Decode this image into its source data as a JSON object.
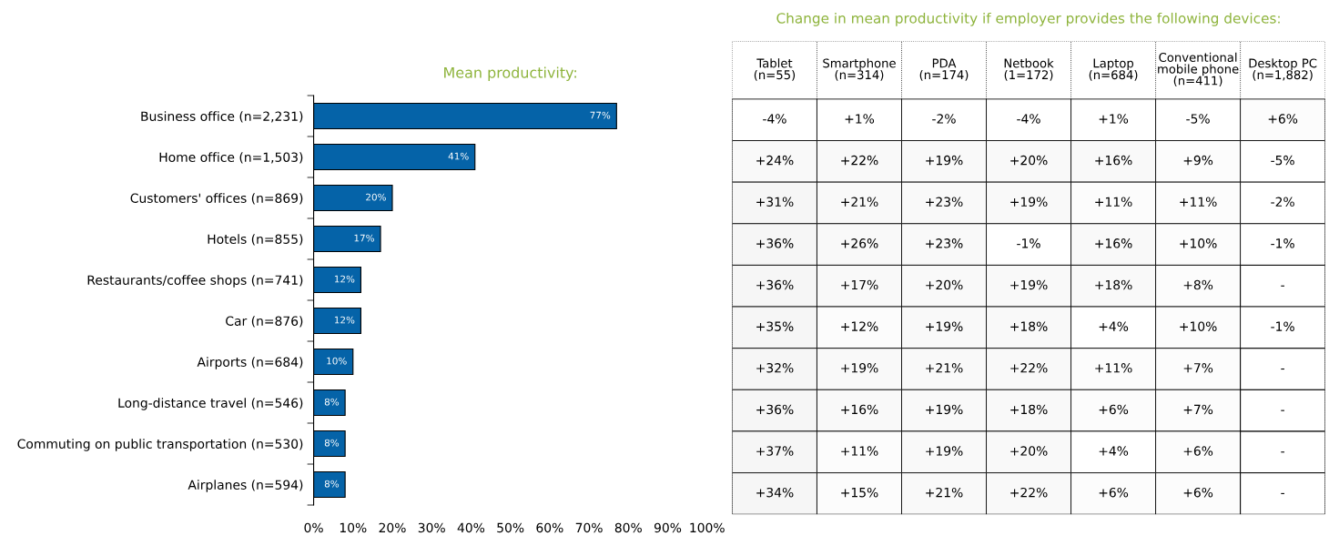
{
  "chart_data": [
    {
      "type": "bar",
      "orientation": "horizontal",
      "title": "Mean productivity:",
      "color": "#0563a8",
      "categories": [
        "Business office (n=2,231)",
        "Home office (n=1,503)",
        "Customers' offices (n=869)",
        "Hotels (n=855)",
        "Restaurants/coffee shops (n=741)",
        "Car (n=876)",
        "Airports (n=684)",
        "Long-distance travel (n=546)",
        "Commuting on public transportation (n=530)",
        "Airplanes (n=594)"
      ],
      "values": [
        77,
        41,
        20,
        17,
        12,
        12,
        10,
        8,
        8,
        8
      ],
      "value_labels": [
        "77%",
        "41%",
        "20%",
        "17%",
        "12%",
        "12%",
        "10%",
        "8%",
        "8%",
        "8%"
      ],
      "xlim": [
        0,
        100
      ],
      "xticks": [
        {
          "value": 0,
          "label": "0%"
        },
        {
          "value": 10,
          "label": "10%"
        },
        {
          "value": 20,
          "label": "20%"
        },
        {
          "value": 30,
          "label": "30%"
        },
        {
          "value": 40,
          "label": "40%"
        },
        {
          "value": 50,
          "label": "50%"
        },
        {
          "value": 60,
          "label": "60%"
        },
        {
          "value": 70,
          "label": "70%"
        },
        {
          "value": 80,
          "label": "80%"
        },
        {
          "value": 90,
          "label": "90%"
        },
        {
          "value": 100,
          "label": "100%"
        }
      ]
    },
    {
      "type": "heatmap",
      "title": "Change in mean productivity if employer provides the following devices:",
      "categories": [
        "Tablet\n(n=55)",
        "Smartphone\n(n=314)",
        "PDA\n(n=174)",
        "Netbook\n(1=172)",
        "Laptop\n(n=684)",
        "Conventional\nmobile phone\n(n=411)",
        "Desktop PC\n(n=1,882)"
      ],
      "y_categories": [
        null,
        null,
        null,
        null,
        null,
        null,
        null,
        null,
        null,
        null
      ],
      "cells": [
        [
          -4,
          1,
          -2,
          -4,
          1,
          -5,
          6
        ],
        [
          24,
          22,
          19,
          20,
          16,
          9,
          -5
        ],
        [
          31,
          21,
          23,
          19,
          11,
          11,
          -2
        ],
        [
          36,
          26,
          23,
          -1,
          16,
          10,
          -1
        ],
        [
          36,
          17,
          20,
          19,
          18,
          8,
          null
        ],
        [
          35,
          12,
          19,
          18,
          4,
          10,
          -1
        ],
        [
          32,
          19,
          21,
          22,
          11,
          7,
          null
        ],
        [
          36,
          16,
          19,
          18,
          6,
          7,
          null
        ],
        [
          37,
          11,
          19,
          20,
          4,
          6,
          null
        ],
        [
          34,
          15,
          21,
          22,
          6,
          6,
          null
        ]
      ],
      "cell_labels": [
        [
          "-4%",
          "+1%",
          "-2%",
          "-4%",
          "+1%",
          "-5%",
          "+6%"
        ],
        [
          "+24%",
          "+22%",
          "+19%",
          "+20%",
          "+16%",
          "+9%",
          "-5%"
        ],
        [
          "+31%",
          "+21%",
          "+23%",
          "+19%",
          "+11%",
          "+11%",
          "-2%"
        ],
        [
          "+36%",
          "+26%",
          "+23%",
          "-1%",
          "+16%",
          "+10%",
          "-1%"
        ],
        [
          "+36%",
          "+17%",
          "+20%",
          "+19%",
          "+18%",
          "+8%",
          "-"
        ],
        [
          "+35%",
          "+12%",
          "+19%",
          "+18%",
          "+4%",
          "+10%",
          "-1%"
        ],
        [
          "+32%",
          "+19%",
          "+21%",
          "+22%",
          "+11%",
          "+7%",
          "-"
        ],
        [
          "+36%",
          "+16%",
          "+19%",
          "+18%",
          "+6%",
          "+7%",
          "-"
        ],
        [
          "+37%",
          "+11%",
          "+19%",
          "+20%",
          "+4%",
          "+6%",
          "-"
        ],
        [
          "+34%",
          "+15%",
          "+21%",
          "+22%",
          "+6%",
          "+6%",
          "-"
        ]
      ]
    }
  ]
}
